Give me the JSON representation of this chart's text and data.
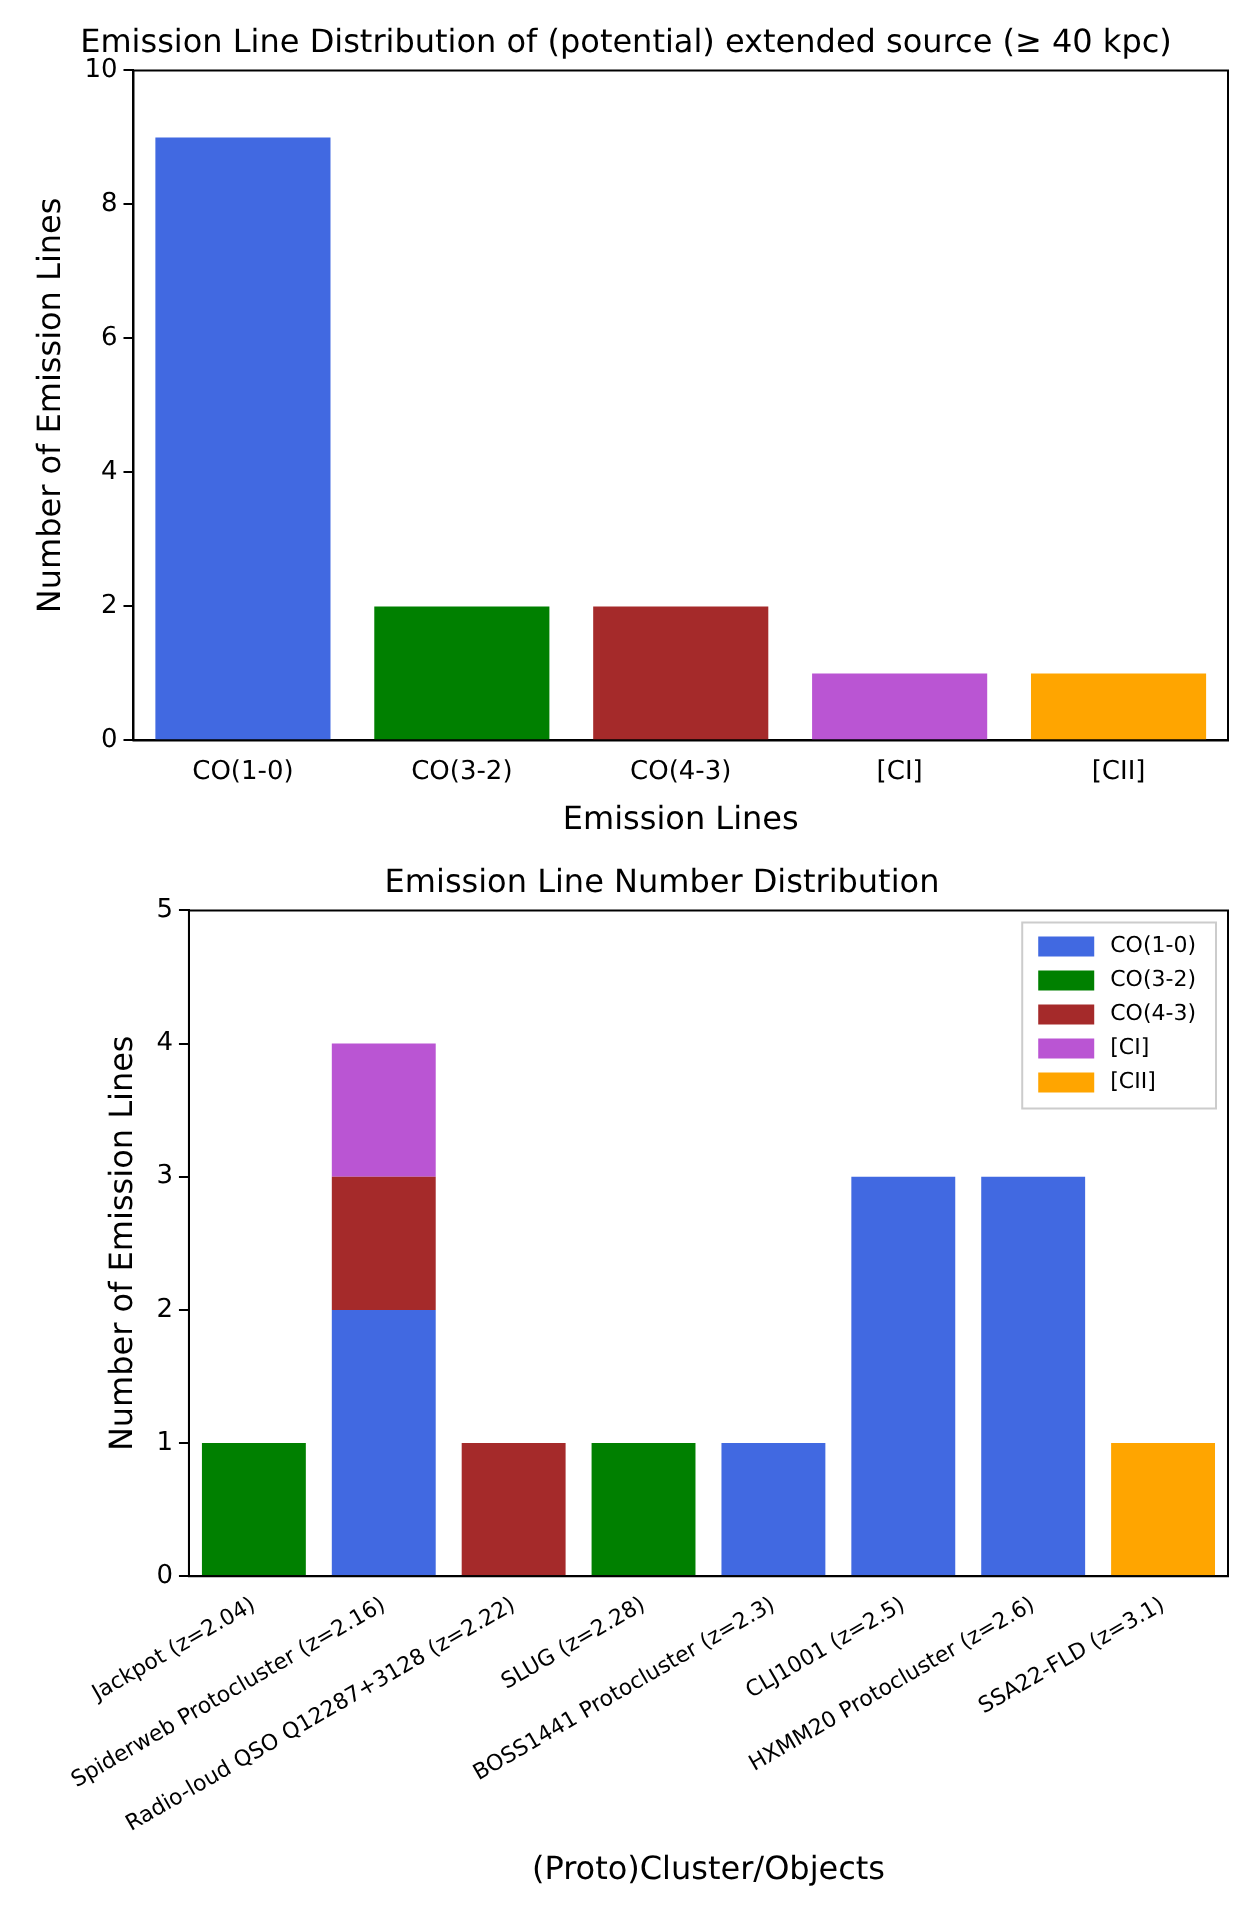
{
  "chart_data": [
    {
      "type": "bar",
      "title": "Emission Line Distribution of (potential) extended source (≥ 40 kpc)",
      "xlabel": "Emission Lines",
      "ylabel": "Number of Emission Lines",
      "categories": [
        "CO(1-0)",
        "CO(3-2)",
        "CO(4-3)",
        "[CI]",
        "[CII]"
      ],
      "values": [
        9,
        2,
        2,
        1,
        1
      ],
      "colors": [
        "#4169e1",
        "#008000",
        "#a52a2a",
        "#ba55d3",
        "#ffa500"
      ],
      "ylim": [
        0,
        10
      ],
      "yticks": [
        0,
        2,
        4,
        6,
        8,
        10
      ],
      "grid": false,
      "legend": false
    },
    {
      "type": "bar",
      "title": "Emission Line Number Distribution",
      "xlabel": "(Proto)Cluster/Objects",
      "ylabel": "Number of Emission Lines",
      "categories": [
        "Jackpot (z=2.04)",
        "Spiderweb Protocluster (z=2.16)",
        "Radio-loud QSO Q12287+3128 (z=2.22)",
        "SLUG (z=2.28)",
        "BOSS1441 Protocluster (z=2.3)",
        "CLJ1001 (z=2.5)",
        "HXMM20 Protocluster (z=2.6)",
        "SSA22-FLD (z=3.1)"
      ],
      "stacked": true,
      "ylim": [
        0,
        5
      ],
      "yticks": [
        0,
        1,
        2,
        3,
        4,
        5
      ],
      "grid": false,
      "legend": "top right",
      "series": [
        {
          "name": "CO(1-0)",
          "color": "#4169e1",
          "values": [
            0,
            2,
            0,
            0,
            1,
            3,
            3,
            0
          ]
        },
        {
          "name": "CO(3-2)",
          "color": "#008000",
          "values": [
            1,
            0,
            0,
            1,
            0,
            0,
            0,
            0
          ]
        },
        {
          "name": "CO(4-3)",
          "color": "#a52a2a",
          "values": [
            0,
            1,
            1,
            0,
            0,
            0,
            0,
            0
          ]
        },
        {
          "name": "[CI]",
          "color": "#ba55d3",
          "values": [
            0,
            1,
            0,
            0,
            0,
            0,
            0,
            0
          ]
        },
        {
          "name": "[CII]",
          "color": "#ffa500",
          "values": [
            0,
            0,
            0,
            0,
            0,
            0,
            0,
            1
          ]
        }
      ]
    }
  ]
}
